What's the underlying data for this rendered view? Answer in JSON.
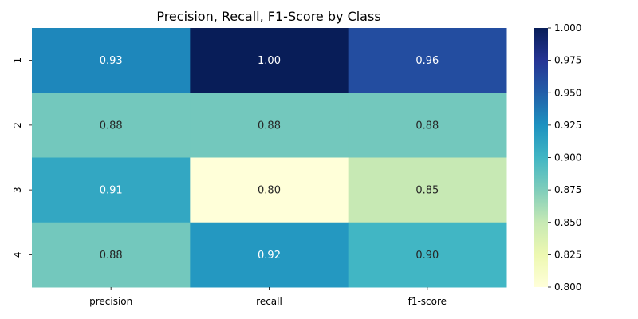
{
  "chart_data": {
    "type": "heatmap",
    "title": "Precision, Recall, F1-Score by Class",
    "xlabel": "",
    "ylabel": "",
    "columns": [
      "precision",
      "recall",
      "f1-score"
    ],
    "rows": [
      "1",
      "2",
      "3",
      "4"
    ],
    "values": [
      [
        0.93,
        1.0,
        0.96
      ],
      [
        0.88,
        0.88,
        0.88
      ],
      [
        0.91,
        0.8,
        0.85
      ],
      [
        0.88,
        0.92,
        0.9
      ]
    ],
    "value_labels": [
      [
        "0.93",
        "1.00",
        "0.96"
      ],
      [
        "0.88",
        "0.88",
        "0.88"
      ],
      [
        "0.91",
        "0.80",
        "0.85"
      ],
      [
        "0.88",
        "0.92",
        "0.90"
      ]
    ],
    "colorbar": {
      "min": 0.8,
      "max": 1.0,
      "ticks": [
        "0.800",
        "0.825",
        "0.850",
        "0.875",
        "0.900",
        "0.925",
        "0.950",
        "0.975",
        "1.000"
      ],
      "tick_values": [
        0.8,
        0.825,
        0.85,
        0.875,
        0.9,
        0.925,
        0.95,
        0.975,
        1.0
      ]
    },
    "colormap": "YlGnBu",
    "grid": false
  }
}
